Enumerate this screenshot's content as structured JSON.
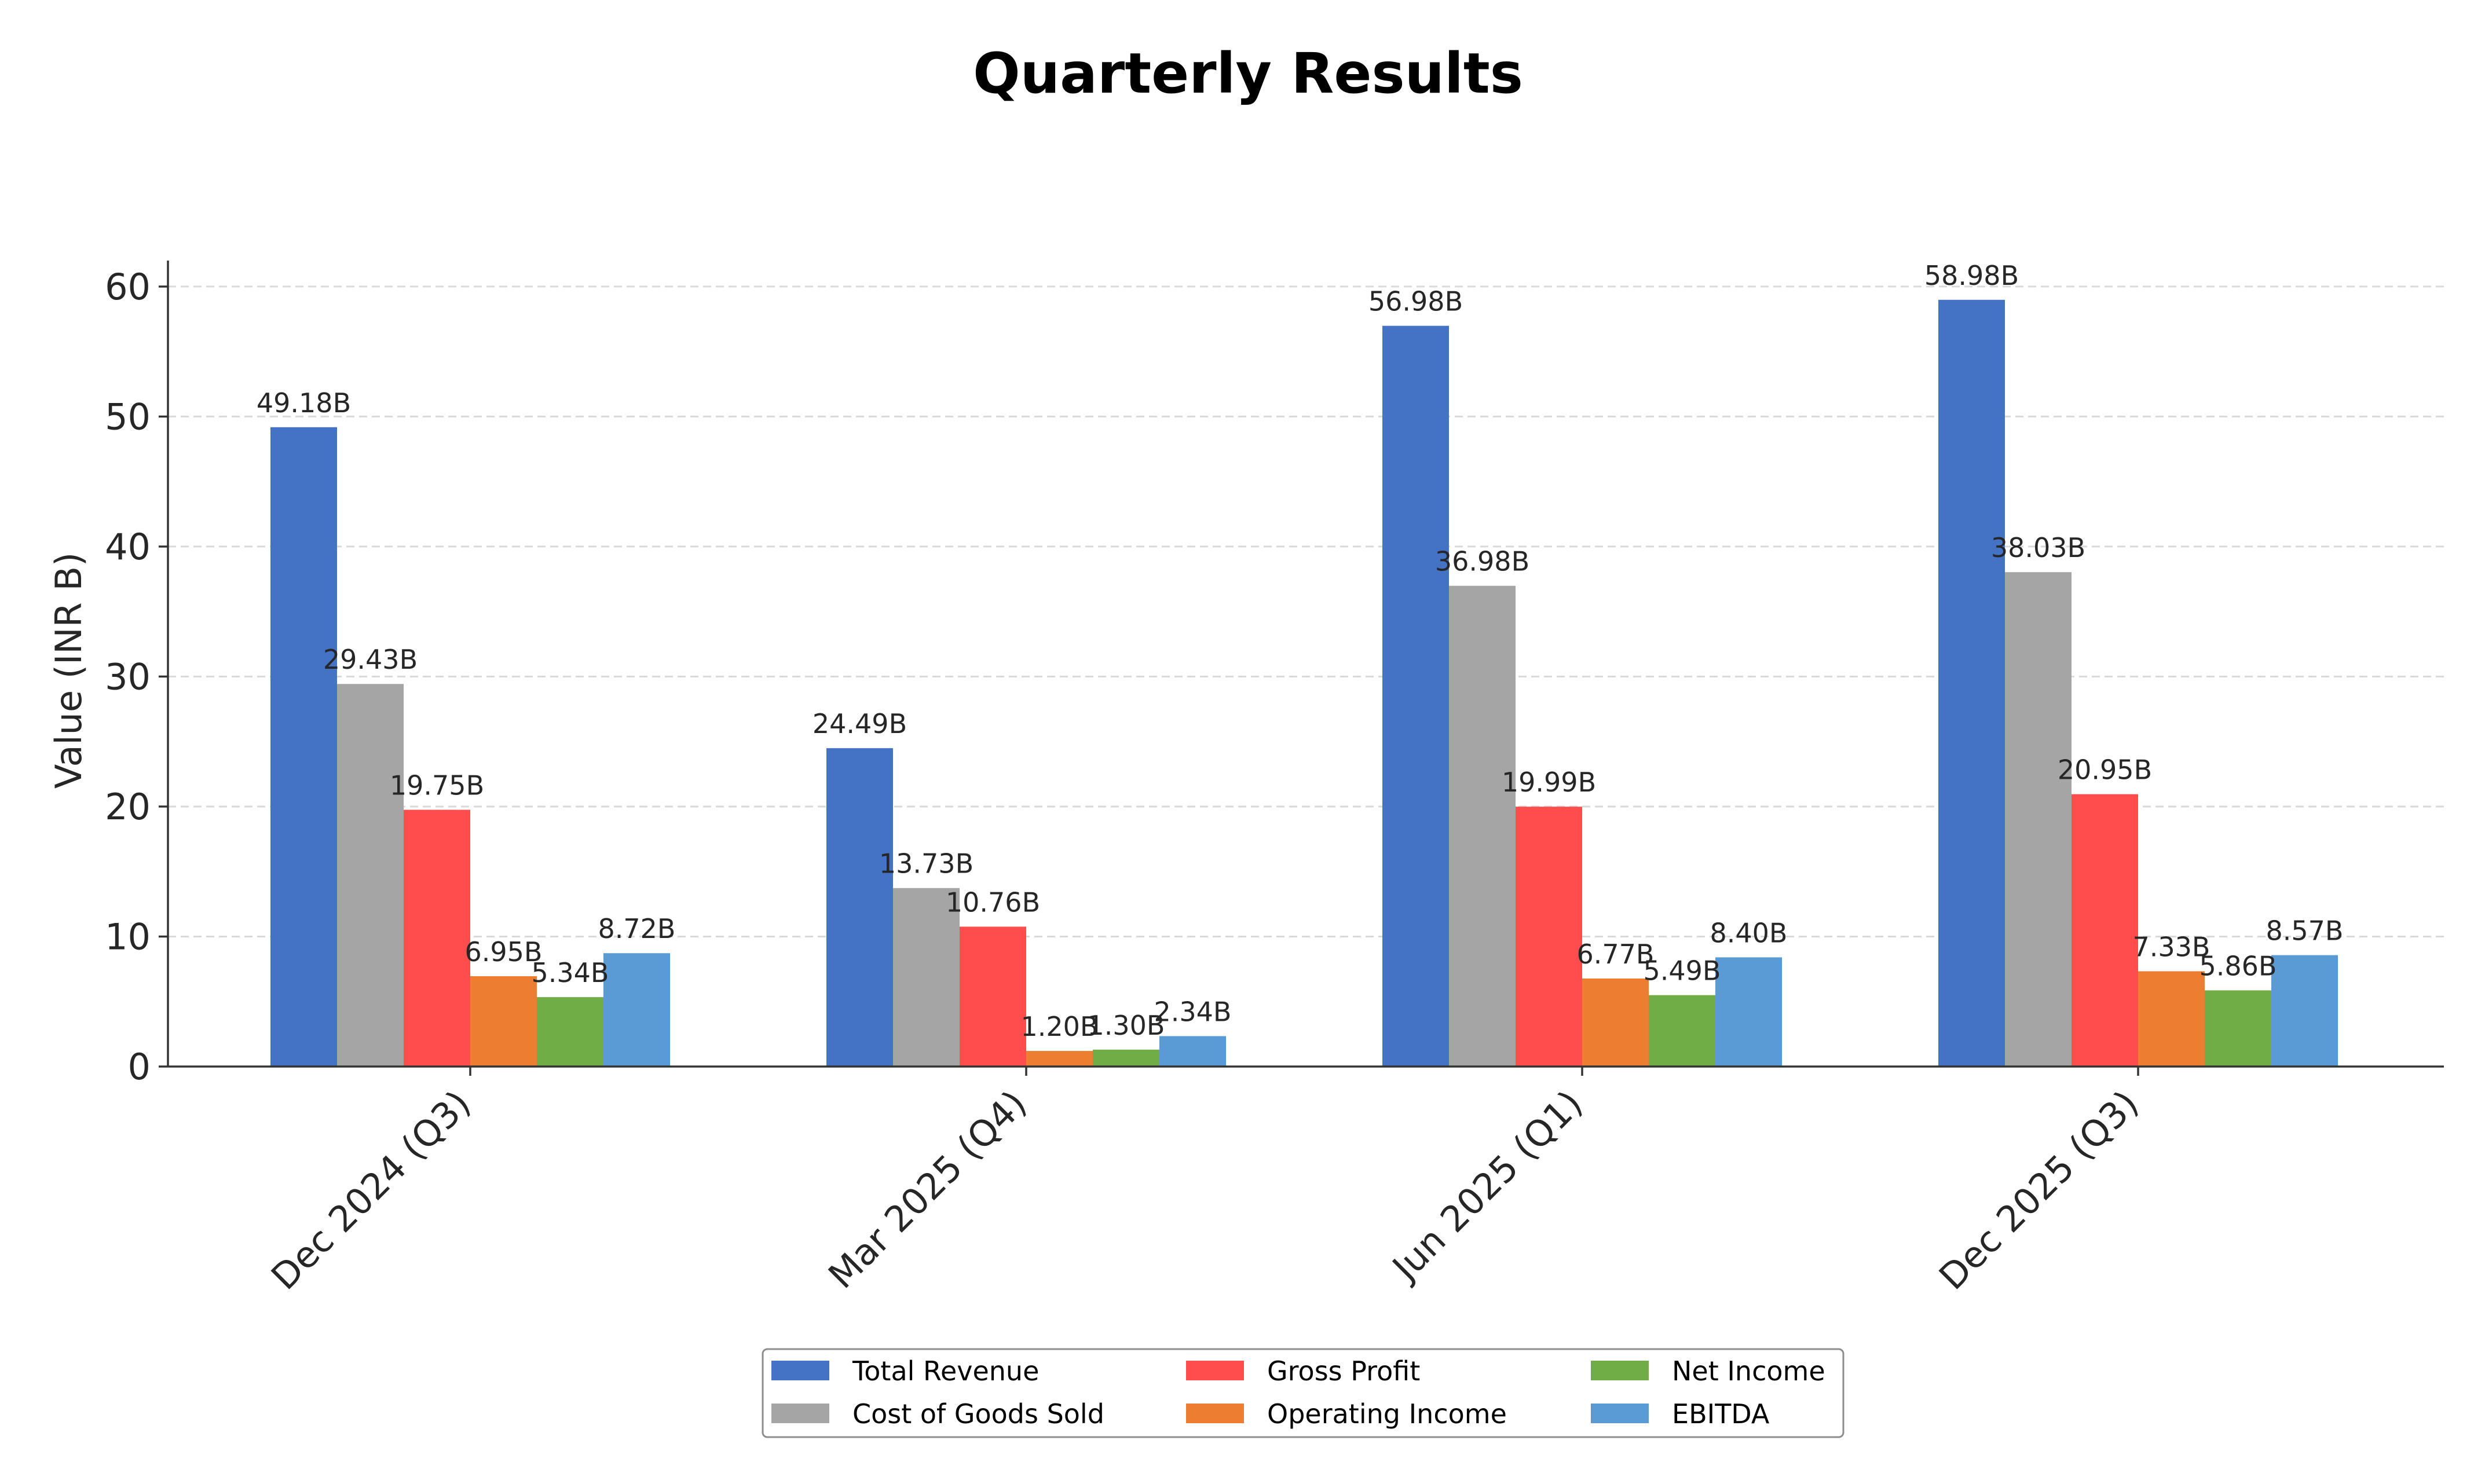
{
  "chart_data": {
    "type": "bar",
    "title": "Quarterly Results",
    "xlabel": "",
    "ylabel": "Value (INR B)",
    "ylim": [
      0,
      62
    ],
    "yticks": [
      0,
      10,
      20,
      30,
      40,
      50,
      60
    ],
    "grid": "horizontal dashed",
    "legend_position": "bottom-center",
    "categories": [
      "Dec 2024 (Q3)",
      "Mar 2025 (Q4)",
      "Jun 2025 (Q1)",
      "Dec 2025 (Q3)"
    ],
    "series": [
      {
        "name": "Total Revenue",
        "color": "#4472C4",
        "values": [
          49.18,
          24.49,
          56.98,
          58.98
        ],
        "labels": [
          "49.18B",
          "24.49B",
          "56.98B",
          "58.98B"
        ]
      },
      {
        "name": "Cost of Goods Sold",
        "color": "#A5A5A5",
        "values": [
          29.43,
          13.73,
          36.98,
          38.03
        ],
        "labels": [
          "29.43B",
          "13.73B",
          "36.98B",
          "38.03B"
        ]
      },
      {
        "name": "Gross Profit",
        "color": "#FF4C4C",
        "values": [
          19.75,
          10.76,
          19.99,
          20.95
        ],
        "labels": [
          "19.75B",
          "10.76B",
          "19.99B",
          "20.95B"
        ]
      },
      {
        "name": "Operating Income",
        "color": "#ED7D31",
        "values": [
          6.95,
          1.2,
          6.77,
          7.33
        ],
        "labels": [
          "6.95B",
          "1.20B",
          "6.77B",
          "7.33B"
        ]
      },
      {
        "name": "Net Income",
        "color": "#70AD47",
        "values": [
          5.34,
          1.3,
          5.49,
          5.86
        ],
        "labels": [
          "5.34B",
          "1.30B",
          "5.49B",
          "5.86B"
        ]
      },
      {
        "name": "EBITDA",
        "color": "#5B9BD5",
        "values": [
          8.72,
          2.34,
          8.4,
          8.57
        ],
        "labels": [
          "8.72B",
          "2.34B",
          "8.40B",
          "8.57B"
        ]
      }
    ]
  }
}
